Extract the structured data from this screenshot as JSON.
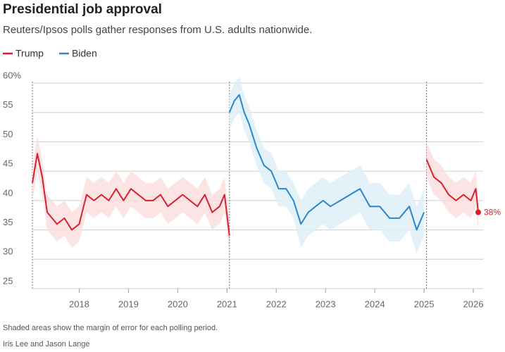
{
  "chart_data": {
    "type": "line",
    "title": "Presidential job approval",
    "subtitle": "Reuters/Ipsos polls gather responses from U.S. adults nationwide.",
    "note": "Shaded areas show the margin of error for each polling period.",
    "byline": "Iris Lee and Jason Lange",
    "xlim": [
      2017.05,
      2026.2
    ],
    "xticks": [
      2018,
      2019,
      2020,
      2021,
      2022,
      2023,
      2024,
      2025,
      2026
    ],
    "ylim": [
      25,
      60
    ],
    "yticks": [
      25,
      30,
      35,
      40,
      45,
      50,
      55,
      {
        "value": 60,
        "label": "60%"
      }
    ],
    "grid": true,
    "series": [
      {
        "name": "Trump",
        "color": "#d7202e",
        "band_color": "#fbdcdd",
        "x": [
          2017.05,
          2017.15,
          2017.25,
          2017.35,
          2017.45,
          2017.55,
          2017.7,
          2017.85,
          2018.0,
          2018.15,
          2018.3,
          2018.45,
          2018.6,
          2018.75,
          2018.9,
          2019.05,
          2019.2,
          2019.35,
          2019.5,
          2019.65,
          2019.8,
          2019.95,
          2020.1,
          2020.25,
          2020.4,
          2020.55,
          2020.7,
          2020.85,
          2020.95,
          2021.05,
          2023,
          2025.05,
          2025.2,
          2025.35,
          2025.5,
          2025.65,
          2025.8,
          2025.95,
          2026.05,
          2026.1
        ],
        "values": [
          43,
          48,
          44,
          38,
          37,
          36,
          37,
          35,
          36,
          41,
          40,
          41,
          40,
          42,
          40,
          42,
          41,
          40,
          40,
          41,
          39,
          40,
          41,
          40,
          39,
          41,
          38,
          39,
          41,
          34,
          null,
          47,
          44,
          43,
          41,
          40,
          41,
          40,
          42,
          38
        ],
        "errors": [
          3,
          3,
          3,
          3,
          3,
          3,
          3,
          3,
          3,
          3,
          3,
          3,
          3,
          3,
          3,
          3,
          3,
          3,
          3,
          3,
          3,
          3,
          3,
          3,
          3,
          3,
          3,
          3,
          3,
          3,
          null,
          3,
          3,
          3,
          3,
          3,
          3,
          3,
          3,
          3
        ],
        "value_labels": [
          null,
          null,
          null,
          null,
          null,
          null,
          null,
          null,
          null,
          null,
          null,
          null,
          null,
          null,
          null,
          null,
          null,
          null,
          null,
          null,
          null,
          null,
          null,
          null,
          null,
          null,
          null,
          null,
          null,
          null,
          null,
          null,
          null,
          null,
          null,
          null,
          null,
          null,
          null,
          "38%"
        ]
      },
      {
        "name": "Biden",
        "color": "#2b87c8",
        "band_color": "#dcedf8",
        "x": [
          2021.05,
          2021.15,
          2021.25,
          2021.35,
          2021.45,
          2021.6,
          2021.75,
          2021.9,
          2022.05,
          2022.2,
          2022.35,
          2022.5,
          2022.65,
          2022.8,
          2022.95,
          2023.1,
          2023.3,
          2023.5,
          2023.7,
          2023.9,
          2024.1,
          2024.3,
          2024.5,
          2024.7,
          2024.85,
          2025.0
        ],
        "values": [
          55,
          57,
          58,
          55,
          53,
          49,
          46,
          45,
          42,
          42,
          40,
          36,
          38,
          39,
          40,
          39,
          40,
          41,
          42,
          39,
          39,
          37,
          37,
          39,
          35,
          38
        ],
        "errors": [
          3,
          3,
          3,
          3,
          3,
          3,
          3,
          3,
          3,
          3,
          3,
          4,
          4,
          4,
          4,
          4,
          4,
          4,
          4,
          4,
          4,
          4,
          4,
          4,
          4,
          4
        ]
      }
    ]
  }
}
